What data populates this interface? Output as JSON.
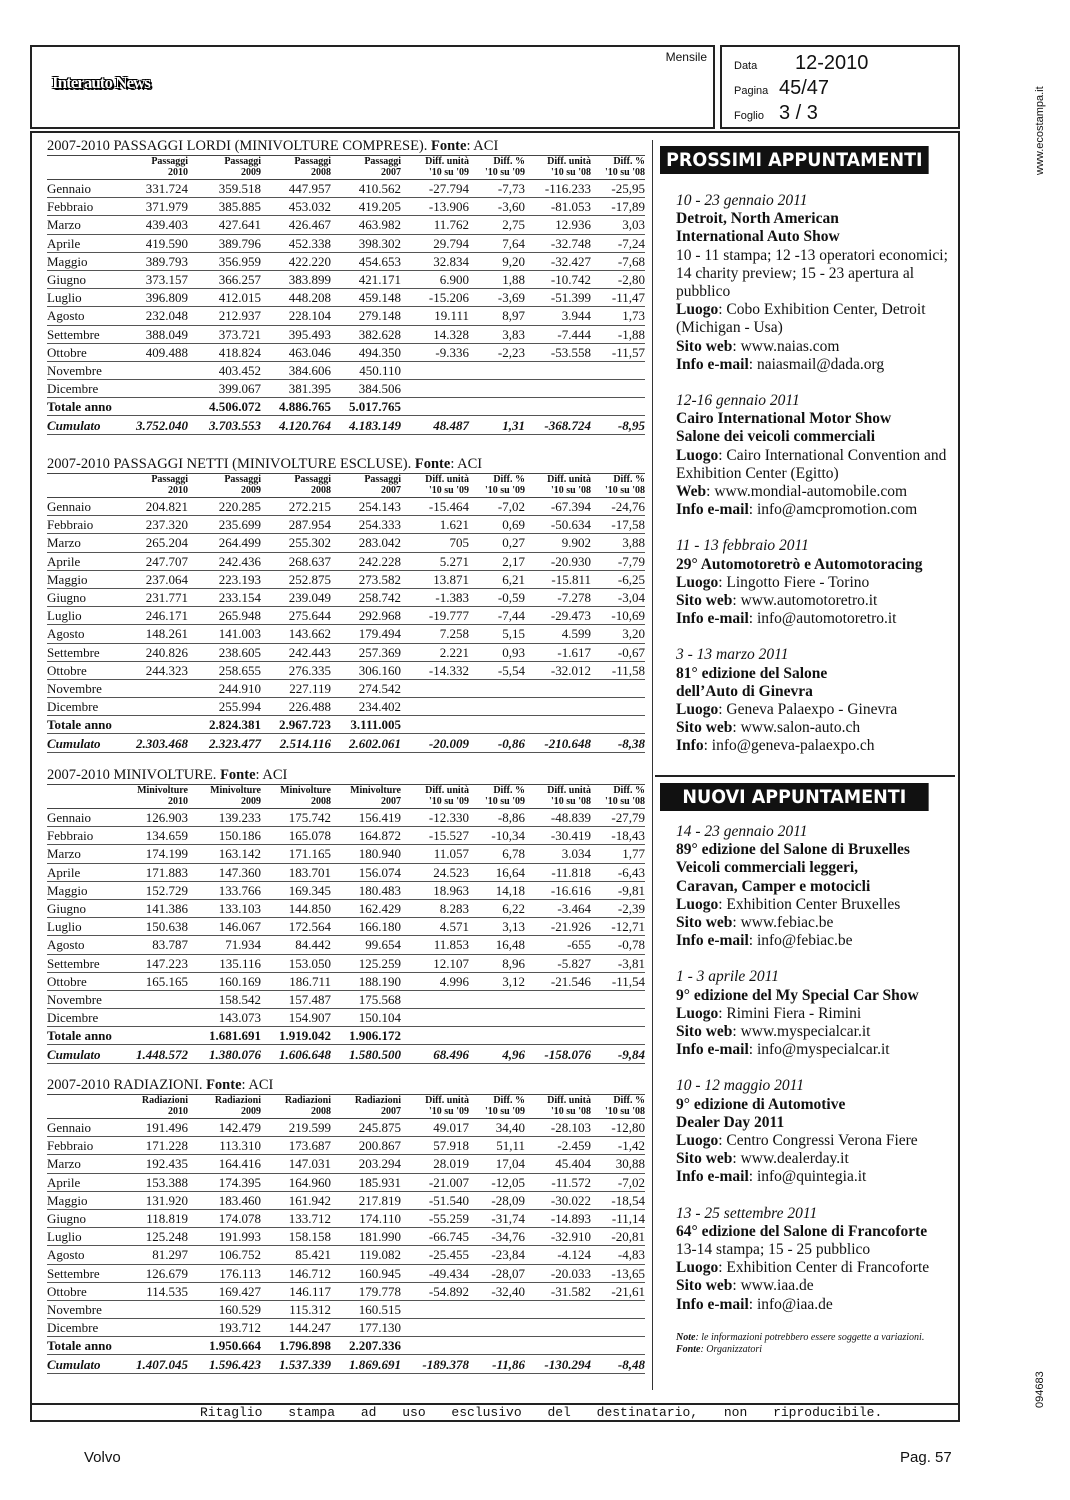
{
  "header": {
    "logo": "Interauto News",
    "frequency": "Mensile",
    "data_label": "Data",
    "data_value": "12-2010",
    "pagina_label": "Pagina",
    "pagina_value": "45/47",
    "foglio_label": "Foglio",
    "foglio_value": "3 / 3"
  },
  "side": {
    "site": "www.ecostampa.it",
    "code": "094683"
  },
  "tables": [
    {
      "title": "2007-2010 PASSAGGI LORDI (MINIVOLTURE COMPRESE). ",
      "source_label": "Fonte",
      "source": ": ACI",
      "columns": [
        [
          "",
          ""
        ],
        [
          "Passaggi",
          "2010"
        ],
        [
          "Passaggi",
          "2009"
        ],
        [
          "Passaggi",
          "2008"
        ],
        [
          "Passaggi",
          "2007"
        ],
        [
          "Diff. unità",
          "'10 su '09"
        ],
        [
          "Diff. %",
          "'10 su '09"
        ],
        [
          "Diff. unità",
          "'10 su '08"
        ],
        [
          "Diff. %",
          "'10 su '08"
        ]
      ],
      "rows": [
        [
          "Gennaio",
          "331.724",
          "359.518",
          "447.957",
          "410.562",
          "-27.794",
          "-7,73",
          "-116.233",
          "-25,95"
        ],
        [
          "Febbraio",
          "371.979",
          "385.885",
          "453.032",
          "419.205",
          "-13.906",
          "-3,60",
          "-81.053",
          "-17,89"
        ],
        [
          "Marzo",
          "439.403",
          "427.641",
          "426.467",
          "463.982",
          "11.762",
          "2,75",
          "12.936",
          "3,03"
        ],
        [
          "Aprile",
          "419.590",
          "389.796",
          "452.338",
          "398.302",
          "29.794",
          "7,64",
          "-32.748",
          "-7,24"
        ],
        [
          "Maggio",
          "389.793",
          "356.959",
          "422.220",
          "454.653",
          "32.834",
          "9,20",
          "-32.427",
          "-7,68"
        ],
        [
          "Giugno",
          "373.157",
          "366.257",
          "383.899",
          "421.171",
          "6.900",
          "1,88",
          "-10.742",
          "-2,80"
        ],
        [
          "Luglio",
          "396.809",
          "412.015",
          "448.208",
          "459.148",
          "-15.206",
          "-3,69",
          "-51.399",
          "-11,47"
        ],
        [
          "Agosto",
          "232.048",
          "212.937",
          "228.104",
          "279.148",
          "19.111",
          "8,97",
          "3.944",
          "1,73"
        ],
        [
          "Settembre",
          "388.049",
          "373.721",
          "395.493",
          "382.628",
          "14.328",
          "3,83",
          "-7.444",
          "-1,88"
        ],
        [
          "Ottobre",
          "409.488",
          "418.824",
          "463.046",
          "494.350",
          "-9.336",
          "-2,23",
          "-53.558",
          "-11,57"
        ],
        [
          "Novembre",
          "",
          "403.452",
          "384.606",
          "450.110",
          "",
          "",
          "",
          ""
        ],
        [
          "Dicembre",
          "",
          "399.067",
          "381.395",
          "384.506",
          "",
          "",
          "",
          ""
        ],
        [
          "Totale anno",
          "",
          "4.506.072",
          "4.886.765",
          "5.017.765",
          "",
          "",
          "",
          ""
        ],
        [
          "Cumulato",
          "3.752.040",
          "3.703.553",
          "4.120.764",
          "4.183.149",
          "48.487",
          "1,31",
          "-368.724",
          "-8,95"
        ]
      ]
    },
    {
      "title": "2007-2010 PASSAGGI NETTI (MINIVOLTURE ESCLUSE). ",
      "source_label": "Fonte",
      "source": ": ACI",
      "columns": [
        [
          "",
          ""
        ],
        [
          "Passaggi",
          "2010"
        ],
        [
          "Passaggi",
          "2009"
        ],
        [
          "Passaggi",
          "2008"
        ],
        [
          "Passaggi",
          "2007"
        ],
        [
          "Diff. unità",
          "'10 su '09"
        ],
        [
          "Diff. %",
          "'10 su '09"
        ],
        [
          "Diff. unità",
          "'10 su '08"
        ],
        [
          "Diff. %",
          "'10 su '08"
        ]
      ],
      "rows": [
        [
          "Gennaio",
          "204.821",
          "220.285",
          "272.215",
          "254.143",
          "-15.464",
          "-7,02",
          "-67.394",
          "-24,76"
        ],
        [
          "Febbraio",
          "237.320",
          "235.699",
          "287.954",
          "254.333",
          "1.621",
          "0,69",
          "-50.634",
          "-17,58"
        ],
        [
          "Marzo",
          "265.204",
          "264.499",
          "255.302",
          "283.042",
          "705",
          "0,27",
          "9.902",
          "3,88"
        ],
        [
          "Aprile",
          "247.707",
          "242.436",
          "268.637",
          "242.228",
          "5.271",
          "2,17",
          "-20.930",
          "-7,79"
        ],
        [
          "Maggio",
          "237.064",
          "223.193",
          "252.875",
          "273.582",
          "13.871",
          "6,21",
          "-15.811",
          "-6,25"
        ],
        [
          "Giugno",
          "231.771",
          "233.154",
          "239.049",
          "258.742",
          "-1.383",
          "-0,59",
          "-7.278",
          "-3,04"
        ],
        [
          "Luglio",
          "246.171",
          "265.948",
          "275.644",
          "292.968",
          "-19.777",
          "-7,44",
          "-29.473",
          "-10,69"
        ],
        [
          "Agosto",
          "148.261",
          "141.003",
          "143.662",
          "179.494",
          "7.258",
          "5,15",
          "4.599",
          "3,20"
        ],
        [
          "Settembre",
          "240.826",
          "238.605",
          "242.443",
          "257.369",
          "2.221",
          "0,93",
          "-1.617",
          "-0,67"
        ],
        [
          "Ottobre",
          "244.323",
          "258.655",
          "276.335",
          "306.160",
          "-14.332",
          "-5,54",
          "-32.012",
          "-11,58"
        ],
        [
          "Novembre",
          "",
          "244.910",
          "227.119",
          "274.542",
          "",
          "",
          "",
          ""
        ],
        [
          "Dicembre",
          "",
          "255.994",
          "226.488",
          "234.402",
          "",
          "",
          "",
          ""
        ],
        [
          "Totale anno",
          "",
          "2.824.381",
          "2.967.723",
          "3.111.005",
          "",
          "",
          "",
          ""
        ],
        [
          "Cumulato",
          "2.303.468",
          "2.323.477",
          "2.514.116",
          "2.602.061",
          "-20.009",
          "-0,86",
          "-210.648",
          "-8,38"
        ]
      ]
    },
    {
      "title": "2007-2010 MINIVOLTURE. ",
      "source_label": "Fonte",
      "source": ": ACI",
      "columns": [
        [
          "",
          ""
        ],
        [
          "Minivolture",
          "2010"
        ],
        [
          "Minivolture",
          "2009"
        ],
        [
          "Minivolture",
          "2008"
        ],
        [
          "Minivolture",
          "2007"
        ],
        [
          "Diff. unità",
          "'10 su '09"
        ],
        [
          "Diff. %",
          "'10 su '09"
        ],
        [
          "Diff. unità",
          "'10 su '08"
        ],
        [
          "Diff. %",
          "'10 su '08"
        ]
      ],
      "rows": [
        [
          "Gennaio",
          "126.903",
          "139.233",
          "175.742",
          "156.419",
          "-12.330",
          "-8,86",
          "-48.839",
          "-27,79"
        ],
        [
          "Febbraio",
          "134.659",
          "150.186",
          "165.078",
          "164.872",
          "-15.527",
          "-10,34",
          "-30.419",
          "-18,43"
        ],
        [
          "Marzo",
          "174.199",
          "163.142",
          "171.165",
          "180.940",
          "11.057",
          "6,78",
          "3.034",
          "1,77"
        ],
        [
          "Aprile",
          "171.883",
          "147.360",
          "183.701",
          "156.074",
          "24.523",
          "16,64",
          "-11.818",
          "-6,43"
        ],
        [
          "Maggio",
          "152.729",
          "133.766",
          "169.345",
          "180.483",
          "18.963",
          "14,18",
          "-16.616",
          "-9,81"
        ],
        [
          "Giugno",
          "141.386",
          "133.103",
          "144.850",
          "162.429",
          "8.283",
          "6,22",
          "-3.464",
          "-2,39"
        ],
        [
          "Luglio",
          "150.638",
          "146.067",
          "172.564",
          "166.180",
          "4.571",
          "3,13",
          "-21.926",
          "-12,71"
        ],
        [
          "Agosto",
          "83.787",
          "71.934",
          "84.442",
          "99.654",
          "11.853",
          "16,48",
          "-655",
          "-0,78"
        ],
        [
          "Settembre",
          "147.223",
          "135.116",
          "153.050",
          "125.259",
          "12.107",
          "8,96",
          "-5.827",
          "-3,81"
        ],
        [
          "Ottobre",
          "165.165",
          "160.169",
          "186.711",
          "188.190",
          "4.996",
          "3,12",
          "-21.546",
          "-11,54"
        ],
        [
          "Novembre",
          "",
          "158.542",
          "157.487",
          "175.568",
          "",
          "",
          "",
          ""
        ],
        [
          "Dicembre",
          "",
          "143.073",
          "154.907",
          "150.104",
          "",
          "",
          "",
          ""
        ],
        [
          "Totale anno",
          "",
          "1.681.691",
          "1.919.042",
          "1.906.172",
          "",
          "",
          "",
          ""
        ],
        [
          "Cumulato",
          "1.448.572",
          "1.380.076",
          "1.606.648",
          "1.580.500",
          "68.496",
          "4,96",
          "-158.076",
          "-9,84"
        ]
      ]
    },
    {
      "title": "2007-2010 RADIAZIONI. ",
      "source_label": "Fonte",
      "source": ": ACI",
      "columns": [
        [
          "",
          ""
        ],
        [
          "Radiazioni",
          "2010"
        ],
        [
          "Radiazioni",
          "2009"
        ],
        [
          "Radiazioni",
          "2008"
        ],
        [
          "Radiazioni",
          "2007"
        ],
        [
          "Diff. unità",
          "'10 su '09"
        ],
        [
          "Diff. %",
          "'10 su '09"
        ],
        [
          "Diff. unità",
          "'10 su '08"
        ],
        [
          "Diff. %",
          "'10 su '08"
        ]
      ],
      "rows": [
        [
          "Gennaio",
          "191.496",
          "142.479",
          "219.599",
          "245.875",
          "49.017",
          "34,40",
          "-28.103",
          "-12,80"
        ],
        [
          "Febbraio",
          "171.228",
          "113.310",
          "173.687",
          "200.867",
          "57.918",
          "51,11",
          "-2.459",
          "-1,42"
        ],
        [
          "Marzo",
          "192.435",
          "164.416",
          "147.031",
          "203.294",
          "28.019",
          "17,04",
          "45.404",
          "30,88"
        ],
        [
          "Aprile",
          "153.388",
          "174.395",
          "164.960",
          "185.931",
          "-21.007",
          "-12,05",
          "-11.572",
          "-7,02"
        ],
        [
          "Maggio",
          "131.920",
          "183.460",
          "161.942",
          "217.819",
          "-51.540",
          "-28,09",
          "-30.022",
          "-18,54"
        ],
        [
          "Giugno",
          "118.819",
          "174.078",
          "133.712",
          "174.110",
          "-55.259",
          "-31,74",
          "-14.893",
          "-11,14"
        ],
        [
          "Luglio",
          "125.248",
          "191.993",
          "158.158",
          "181.990",
          "-66.745",
          "-34,76",
          "-32.910",
          "-20,81"
        ],
        [
          "Agosto",
          "81.297",
          "106.752",
          "85.421",
          "119.082",
          "-25.455",
          "-23,84",
          "-4.124",
          "-4,83"
        ],
        [
          "Settembre",
          "126.679",
          "176.113",
          "146.712",
          "160.945",
          "-49.434",
          "-28,07",
          "-20.033",
          "-13,65"
        ],
        [
          "Ottobre",
          "114.535",
          "169.427",
          "146.117",
          "179.778",
          "-54.892",
          "-32,40",
          "-31.582",
          "-21,61"
        ],
        [
          "Novembre",
          "",
          "160.529",
          "115.312",
          "160.515",
          "",
          "",
          "",
          ""
        ],
        [
          "Dicembre",
          "",
          "193.712",
          "144.247",
          "177.130",
          "",
          "",
          "",
          ""
        ],
        [
          "Totale anno",
          "",
          "1.950.664",
          "1.796.898",
          "2.207.336",
          "",
          "",
          "",
          ""
        ],
        [
          "Cumulato",
          "1.407.045",
          "1.596.423",
          "1.537.339",
          "1.869.691",
          "-189.378",
          "-11,86",
          "-130.294",
          "-8,48"
        ]
      ]
    }
  ],
  "events": {
    "prossimi_title": "PROSSIMI APPUNTAMENTI",
    "nuovi_title": "NUOVI APPUNTAMENTI",
    "prossimi": [
      {
        "date": "10 - 23 gennaio 2011",
        "title": [
          "Detroit, North American",
          "International Auto Show"
        ],
        "desc": "10 - 11 stampa; 12 -13 operatori economici; 14 charity preview; 15 - 23 apertura al pubblico",
        "fields": [
          [
            "Luogo",
            ": Cobo Exhibition Center, Detroit (Michigan - Usa)"
          ],
          [
            "Sito web",
            ": www.naias.com"
          ],
          [
            "Info e-mail",
            ": naiasmail@dada.org"
          ]
        ]
      },
      {
        "date": "12-16 gennaio 2011",
        "title": [
          "Cairo International Motor Show",
          "Salone dei veicoli commerciali"
        ],
        "desc": "",
        "fields": [
          [
            "Luogo",
            ": Cairo International Convention and Exhibition Center (Egitto)"
          ],
          [
            "Web",
            ": www.mondial-automobile.com"
          ],
          [
            "Info e-mail",
            ": info@amcpromotion.com"
          ]
        ]
      },
      {
        "date": "11 - 13 febbraio 2011",
        "title": [
          "29° Automotoretrò e Automotoracing"
        ],
        "desc": "",
        "fields": [
          [
            "Luogo",
            ": Lingotto Fiere - Torino"
          ],
          [
            "Sito web",
            ": www.automotoretro.it"
          ],
          [
            "Info e-mail",
            ": info@automotoretro.it"
          ]
        ]
      },
      {
        "date": "3 - 13 marzo 2011",
        "title": [
          "81° edizione del Salone",
          "dell’Auto di Ginevra"
        ],
        "desc": "",
        "fields": [
          [
            "Luogo",
            ": Geneva Palaexpo - Ginevra"
          ],
          [
            "Sito web",
            ": www.salon-auto.ch"
          ],
          [
            "Info",
            ": info@geneva-palaexpo.ch"
          ]
        ]
      }
    ],
    "nuovi": [
      {
        "date": "14 - 23 gennaio 2011",
        "title": [
          "89° edizione del Salone di Bruxelles",
          "Veicoli commerciali leggeri,",
          "Caravan, Camper e motocicli"
        ],
        "desc": "",
        "fields": [
          [
            "Luogo",
            ": Exhibition Center Bruxelles"
          ],
          [
            "Sito web",
            ": www.febiac.be"
          ],
          [
            "Info e-mail",
            ": info@febiac.be"
          ]
        ]
      },
      {
        "date": "1 - 3 aprile 2011",
        "title": [
          "9° edizione del My Special Car Show"
        ],
        "desc": "",
        "fields": [
          [
            "Luogo",
            ": Rimini Fiera - Rimini"
          ],
          [
            "Sito web",
            ": www.myspecialcar.it"
          ],
          [
            "Info e-mail",
            ": info@myspecialcar.it"
          ]
        ]
      },
      {
        "date": "10 - 12 maggio 2011",
        "title": [
          "9° edizione di Automotive",
          "Dealer Day 2011"
        ],
        "desc": "",
        "fields": [
          [
            "Luogo",
            ": Centro Congressi Verona Fiere"
          ],
          [
            "Sito web",
            ": www.dealerday.it"
          ],
          [
            "Info e-mail",
            ": info@quintegia.it"
          ]
        ]
      },
      {
        "date": "13 - 25 settembre 2011",
        "title": [
          "64° edizione del Salone di Francoforte"
        ],
        "desc": "13-14 stampa; 15 - 25 pubblico",
        "fields": [
          [
            "Luogo",
            ": Exhibition Center di Francoforte"
          ],
          [
            "Sito web",
            ": www.iaa.de"
          ],
          [
            "Info e-mail",
            ": info@iaa.de"
          ]
        ]
      }
    ],
    "note_label": "Note",
    "note_text": ": le informazioni potrebbero essere soggette a variazioni. ",
    "note_source_label": "Fonte",
    "note_source": ": Organizzatori"
  },
  "footer": {
    "disclaimer": "Ritaglio stampa ad uso esclusivo del destinatario, non riproducibile.",
    "brand": "Volvo",
    "page": "Pag. 57"
  }
}
